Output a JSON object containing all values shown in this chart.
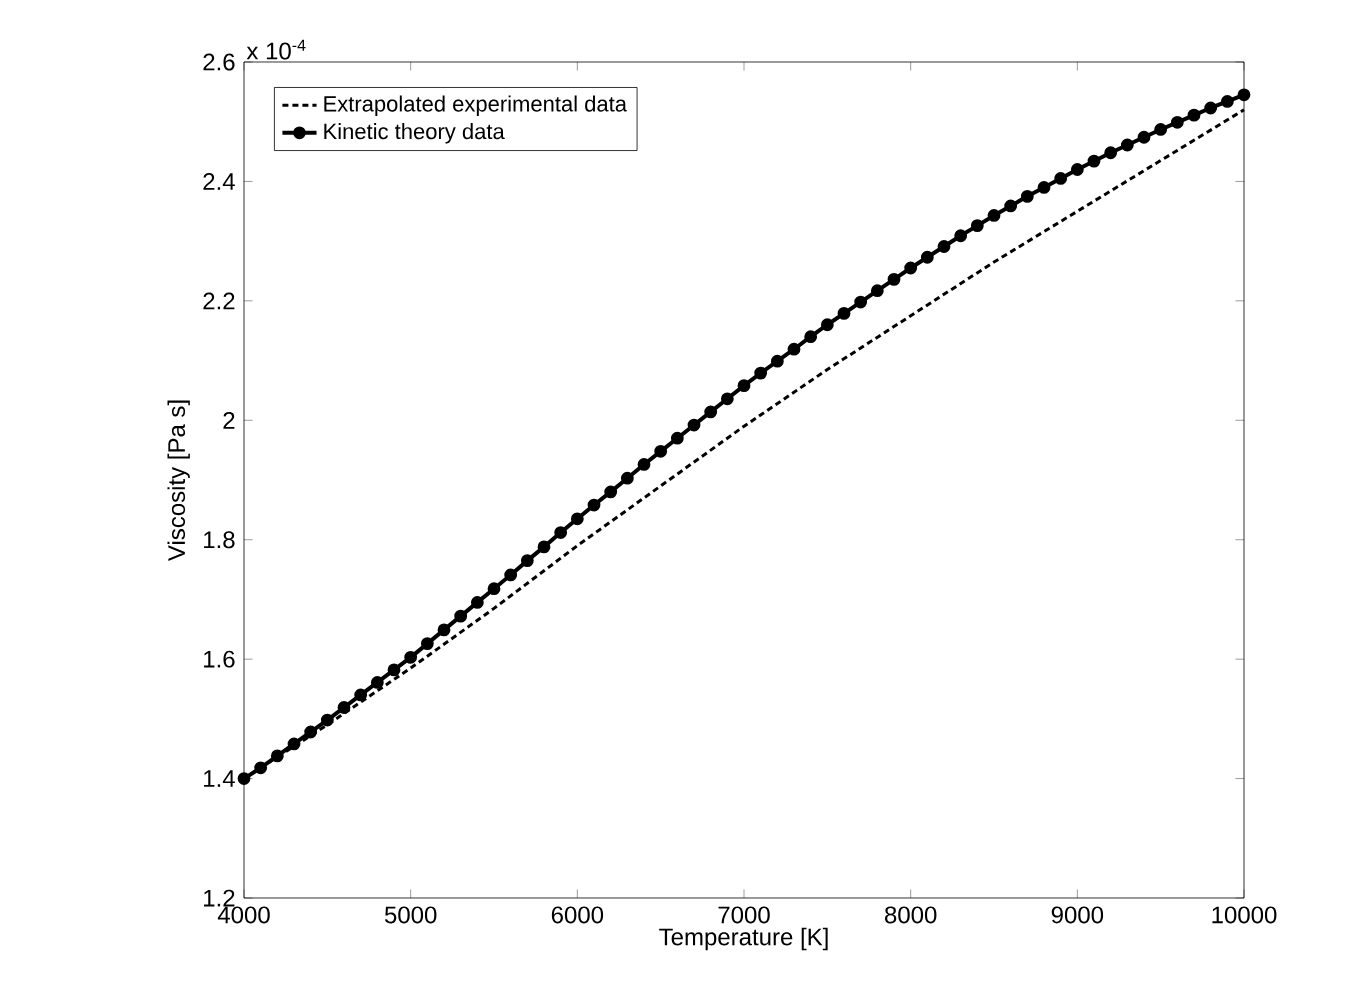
{
  "chart_data": {
    "type": "line",
    "xlabel": "Temperature [K]",
    "ylabel": "Viscosity [Pa s]",
    "annotations": [
      "x 10$^{-4}$"
    ],
    "xlim": [
      4000,
      10000
    ],
    "xticks": [
      4000,
      5000,
      6000,
      7000,
      8000,
      9000,
      10000
    ],
    "ylim": [
      1.2,
      2.6
    ],
    "yticks": [
      1.2,
      1.4,
      1.6,
      1.8,
      2,
      2.2,
      2.4,
      2.6
    ],
    "grid": false,
    "legend": "top left",
    "series": [
      {
        "name": "Extrapolated experimental data",
        "color": "#000000",
        "marker": "none",
        "line_style": "dashed",
        "x": [
          4000,
          4500,
          5000,
          5500,
          6000,
          6500,
          7000,
          7500,
          8000,
          8500,
          9000,
          9500,
          10000
        ],
        "values": [
          1.4,
          1.49,
          1.585,
          1.685,
          1.79,
          1.89,
          1.99,
          2.085,
          2.175,
          2.265,
          2.35,
          2.435,
          2.52
        ]
      },
      {
        "name": "Kinetic theory data",
        "color": "#000000",
        "marker": "circle",
        "line_style": "solid",
        "x": [
          4000,
          4100,
          4200,
          4300,
          4400,
          4500,
          4600,
          4700,
          4800,
          4900,
          5000,
          5100,
          5200,
          5300,
          5400,
          5500,
          5600,
          5700,
          5800,
          5900,
          6000,
          6100,
          6200,
          6300,
          6400,
          6500,
          6600,
          6700,
          6800,
          6900,
          7000,
          7100,
          7200,
          7300,
          7400,
          7500,
          7600,
          7700,
          7800,
          7900,
          8000,
          8100,
          8200,
          8300,
          8400,
          8500,
          8600,
          8700,
          8800,
          8900,
          9000,
          9100,
          9200,
          9300,
          9400,
          9500,
          9600,
          9700,
          9800,
          9900,
          10000
        ],
        "values": [
          1.4,
          1.418,
          1.438,
          1.458,
          1.478,
          1.498,
          1.519,
          1.54,
          1.561,
          1.582,
          1.603,
          1.626,
          1.649,
          1.672,
          1.695,
          1.718,
          1.741,
          1.765,
          1.788,
          1.812,
          1.835,
          1.858,
          1.88,
          1.903,
          1.926,
          1.948,
          1.97,
          1.992,
          2.014,
          2.036,
          2.058,
          2.079,
          2.099,
          2.119,
          2.14,
          2.16,
          2.179,
          2.198,
          2.217,
          2.236,
          2.255,
          2.273,
          2.291,
          2.309,
          2.326,
          2.343,
          2.359,
          2.375,
          2.39,
          2.405,
          2.42,
          2.434,
          2.448,
          2.461,
          2.474,
          2.487,
          2.499,
          2.511,
          2.523,
          2.534,
          2.545
        ]
      }
    ]
  }
}
